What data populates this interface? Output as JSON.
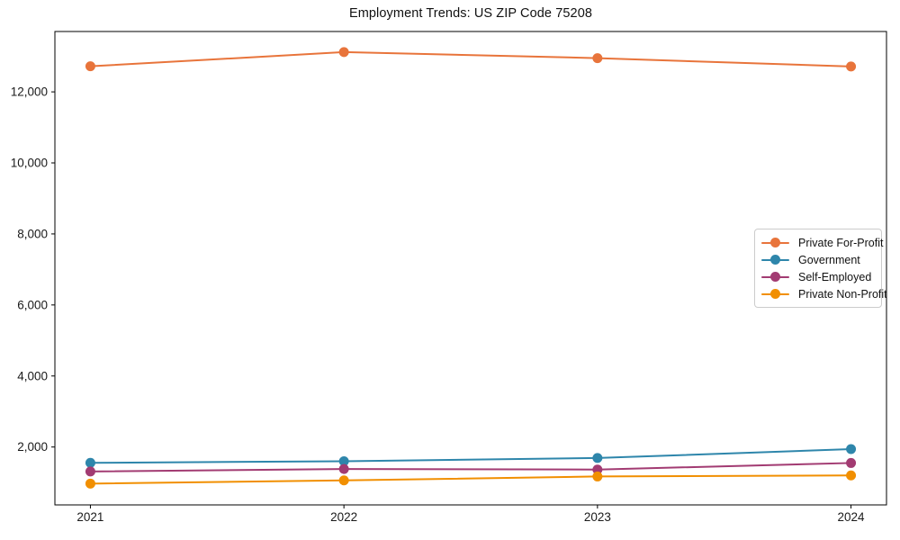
{
  "title": "Employment Trends: US ZIP Code 75208",
  "chart_data": {
    "type": "line",
    "title": "Employment Trends: US ZIP Code 75208",
    "xlabel": "",
    "ylabel": "",
    "x": [
      2021,
      2022,
      2023,
      2024
    ],
    "x_tick_labels": [
      "2021",
      "2022",
      "2023",
      "2024"
    ],
    "series": [
      {
        "name": "Private For-Profit",
        "color": "#E8743B",
        "values": [
          12720,
          13120,
          12950,
          12715
        ]
      },
      {
        "name": "Government",
        "color": "#2E86AB",
        "values": [
          1555,
          1600,
          1690,
          1940
        ]
      },
      {
        "name": "Self-Employed",
        "color": "#A23B72",
        "values": [
          1310,
          1380,
          1365,
          1550
        ]
      },
      {
        "name": "Private Non-Profit",
        "color": "#F18F01",
        "values": [
          970,
          1060,
          1170,
          1200
        ]
      }
    ],
    "yticks": [
      2000,
      4000,
      6000,
      8000,
      10000,
      12000
    ],
    "ytick_labels": [
      "2,000",
      "4,000",
      "6,000",
      "8,000",
      "10,000",
      "12,000"
    ],
    "ylim": [
      370,
      13700
    ],
    "xlim": [
      2020.86,
      2024.14
    ],
    "grid": false,
    "legend_position": "center-right",
    "marker": "circle",
    "background_color": "#ffffff",
    "axis_color": "#000000",
    "tick_label_color": "#1a1a1a"
  }
}
